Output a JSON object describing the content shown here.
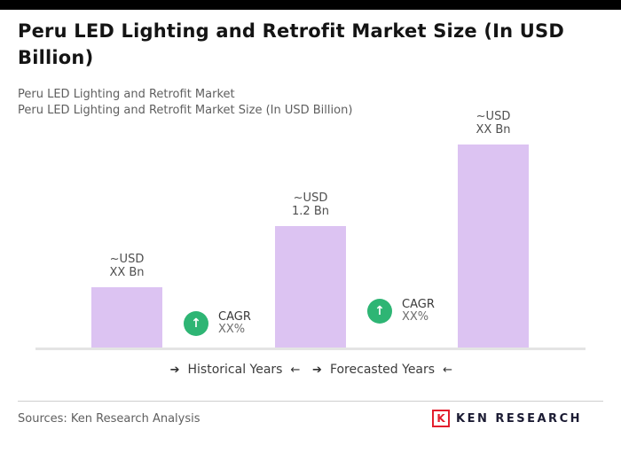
{
  "page": {
    "title": "Peru LED Lighting and Retrofit Market Size (In USD Billion)",
    "subtitle1": "Peru LED Lighting and Retrofit Market",
    "subtitle2": "Peru LED Lighting and Retrofit Market Size (In USD Billion)",
    "sources": "Sources: Ken Research Analysis"
  },
  "chart_data": {
    "type": "bar",
    "title": "Peru LED Lighting and Retrofit Market Size (In USD Billion)",
    "unit": "USD Billion",
    "values": [
      0.6,
      1.2,
      2.0
    ],
    "ylim": [
      0,
      2.2
    ],
    "grid": false,
    "bar_color": "#dcc3f2",
    "value_labels": [
      {
        "line1": "~USD",
        "line2": "XX Bn"
      },
      {
        "line1": "~USD",
        "line2": "1.2 Bn"
      },
      {
        "line1": "~USD",
        "line2": "XX Bn"
      }
    ],
    "cagr_badges": [
      {
        "line1": "CAGR",
        "line2": "XX%"
      },
      {
        "line1": "CAGR",
        "line2": "XX%"
      }
    ],
    "axis_groups": [
      {
        "lead_arrow": "➔",
        "label": "Historical Years",
        "trail_arrow": "←"
      },
      {
        "lead_arrow": "➔",
        "label": "Forecasted Years",
        "trail_arrow": "←"
      }
    ]
  },
  "icons": {
    "growth_arrow": "↑"
  },
  "logo": {
    "icon_letter": "K",
    "text": "KEN RESEARCH",
    "accent_color": "#e31e2d"
  }
}
